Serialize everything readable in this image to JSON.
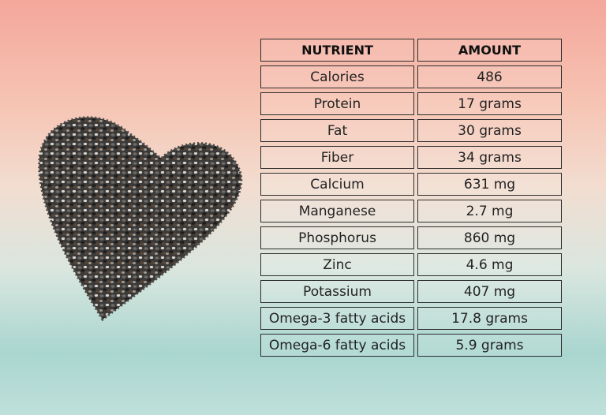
{
  "table": {
    "header": [
      "NUTRIENT",
      "AMOUNT"
    ],
    "rows": [
      [
        "Calories",
        "486"
      ],
      [
        "Protein",
        "17 grams"
      ],
      [
        "Fat",
        "30 grams"
      ],
      [
        "Fiber",
        "34 grams"
      ],
      [
        "Calcium",
        "631 mg"
      ],
      [
        "Manganese",
        "2.7 mg"
      ],
      [
        "Phosphorus",
        "860 mg"
      ],
      [
        "Zinc",
        "4.6 mg"
      ],
      [
        "Potassium",
        "407 mg"
      ],
      [
        "Omega-3 fatty acids",
        "17.8 grams"
      ],
      [
        "Omega-6 fatty acids",
        "5.9 grams"
      ]
    ]
  }
}
